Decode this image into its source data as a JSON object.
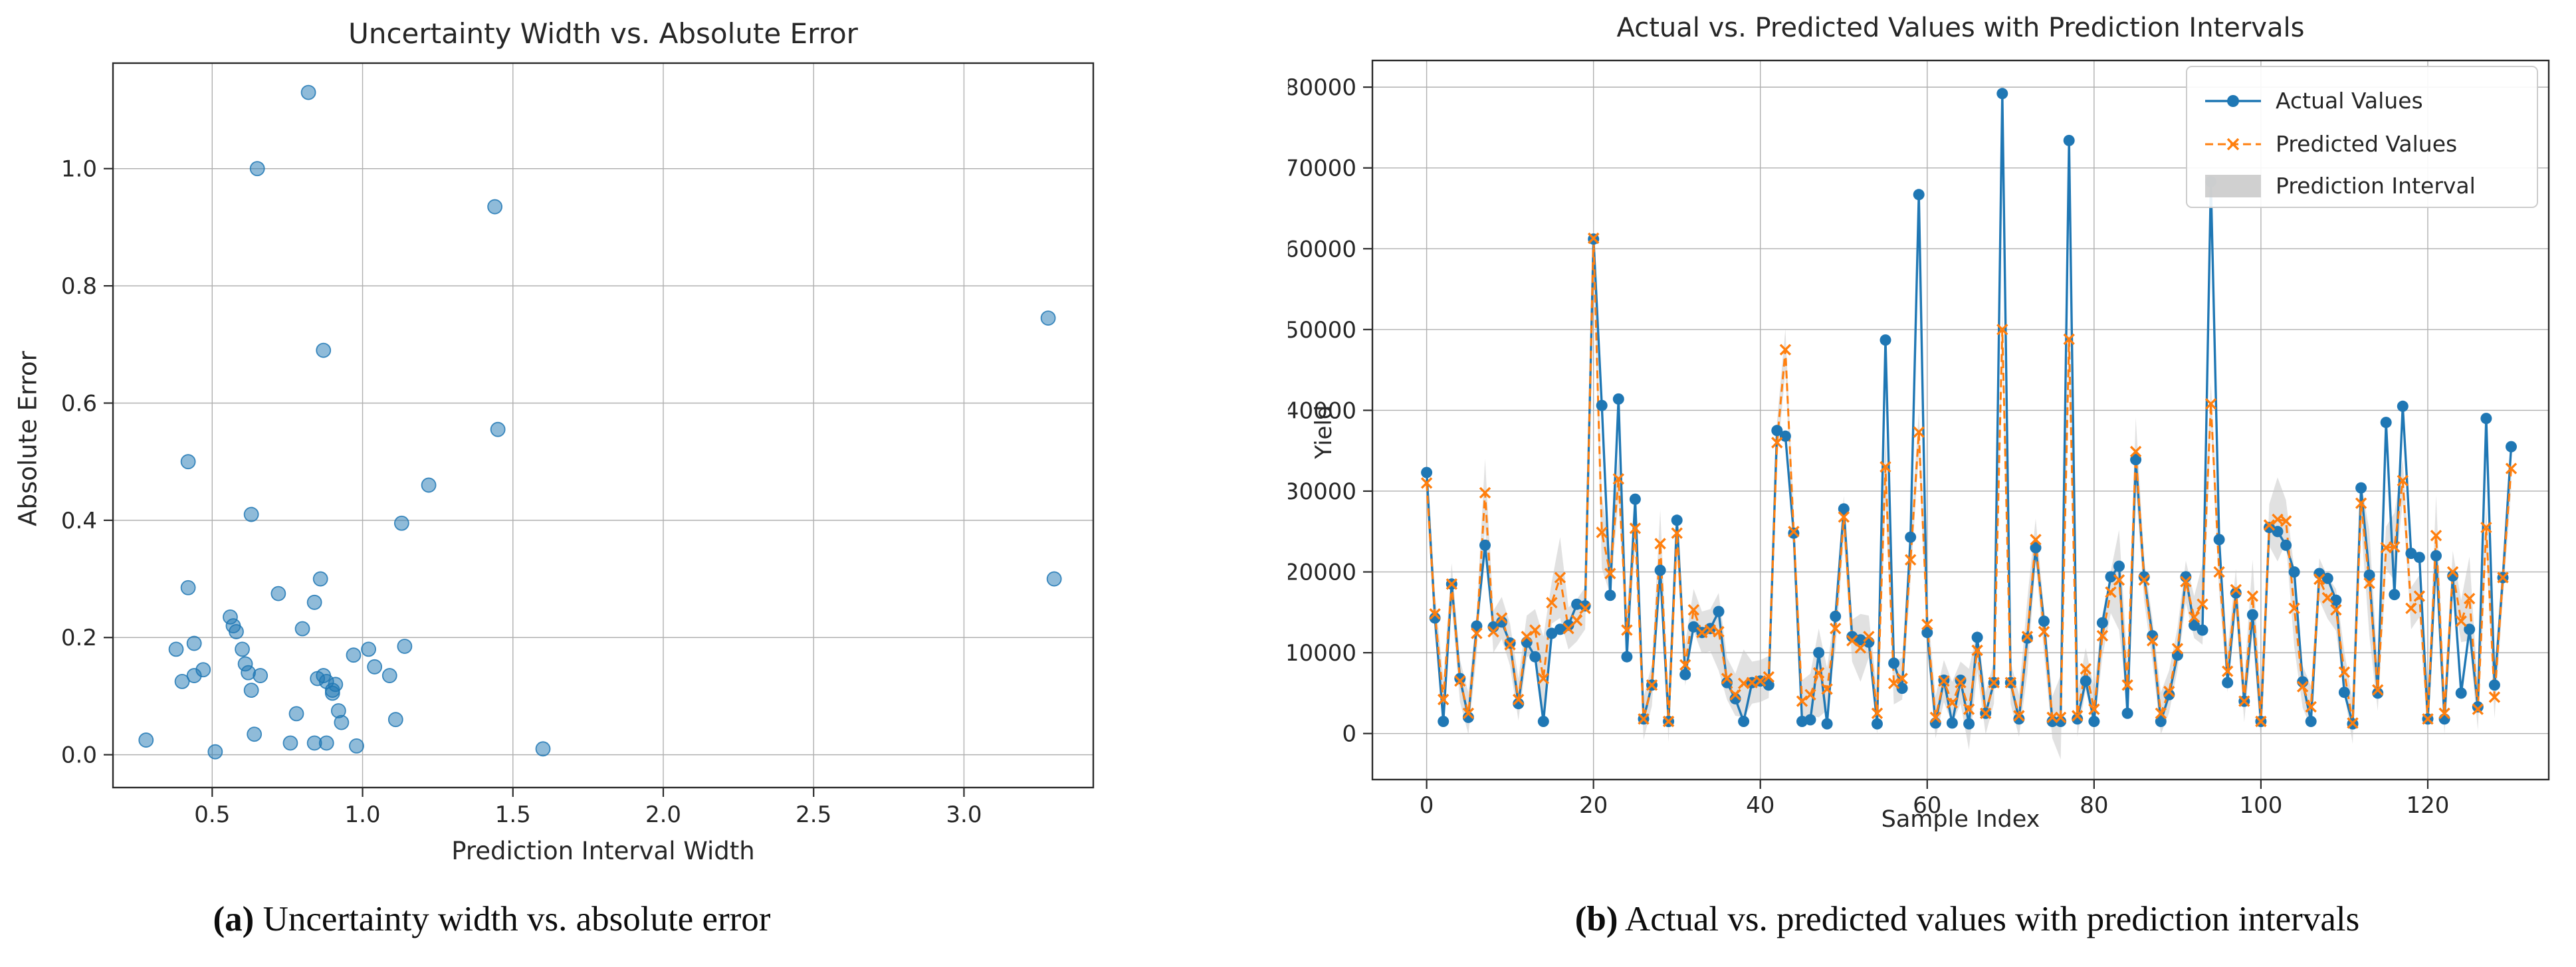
{
  "page": {
    "background": "#ffffff"
  },
  "captions": {
    "a": {
      "label": "(a)",
      "text": " Uncertainty width vs. absolute error"
    },
    "b": {
      "label": "(b)",
      "text": " Actual vs. predicted values with prediction intervals"
    }
  },
  "colors": {
    "actual_blue": "#1f77b4",
    "predicted_orange": "#ff7f0e",
    "interval_gray": "#c4c4c4",
    "grid": "#b0b0b0",
    "spine": "#2a2a2a",
    "text": "#262626"
  },
  "chart_data": [
    {
      "id": "uncertainty_scatter",
      "type": "scatter",
      "title": "Uncertainty Width vs. Absolute Error",
      "xlabel": "Prediction Interval Width",
      "ylabel": "Absolute Error",
      "x_ticks": [
        0.5,
        1.0,
        1.5,
        2.0,
        2.5,
        3.0
      ],
      "y_ticks": [
        0.0,
        0.2,
        0.4,
        0.6,
        0.8,
        1.0
      ],
      "xlim": [
        0.17,
        3.43
      ],
      "ylim": [
        -0.056,
        1.18
      ],
      "grid": true,
      "legend_position": "none",
      "marker": {
        "shape": "circle",
        "color": "#1f77b4",
        "opacity": 0.5,
        "radius": 10.5
      },
      "points": [
        [
          0.28,
          0.025
        ],
        [
          0.38,
          0.18
        ],
        [
          0.4,
          0.125
        ],
        [
          0.42,
          0.5
        ],
        [
          0.42,
          0.285
        ],
        [
          0.44,
          0.19
        ],
        [
          0.44,
          0.135
        ],
        [
          0.47,
          0.145
        ],
        [
          0.51,
          0.005
        ],
        [
          0.56,
          0.235
        ],
        [
          0.57,
          0.22
        ],
        [
          0.58,
          0.21
        ],
        [
          0.6,
          0.18
        ],
        [
          0.61,
          0.155
        ],
        [
          0.62,
          0.14
        ],
        [
          0.63,
          0.41
        ],
        [
          0.63,
          0.11
        ],
        [
          0.64,
          0.035
        ],
        [
          0.65,
          1.0
        ],
        [
          0.66,
          0.135
        ],
        [
          0.72,
          0.275
        ],
        [
          0.76,
          0.02
        ],
        [
          0.78,
          0.07
        ],
        [
          0.8,
          0.215
        ],
        [
          0.82,
          1.13
        ],
        [
          0.84,
          0.26
        ],
        [
          0.84,
          0.02
        ],
        [
          0.85,
          0.13
        ],
        [
          0.86,
          0.3
        ],
        [
          0.87,
          0.69
        ],
        [
          0.87,
          0.135
        ],
        [
          0.88,
          0.125
        ],
        [
          0.88,
          0.02
        ],
        [
          0.9,
          0.11
        ],
        [
          0.9,
          0.105
        ],
        [
          0.91,
          0.12
        ],
        [
          0.92,
          0.075
        ],
        [
          0.93,
          0.055
        ],
        [
          0.97,
          0.17
        ],
        [
          0.98,
          0.015
        ],
        [
          1.02,
          0.18
        ],
        [
          1.04,
          0.15
        ],
        [
          1.09,
          0.135
        ],
        [
          1.11,
          0.06
        ],
        [
          1.13,
          0.395
        ],
        [
          1.14,
          0.185
        ],
        [
          1.22,
          0.46
        ],
        [
          1.44,
          0.935
        ],
        [
          1.45,
          0.555
        ],
        [
          1.6,
          0.01
        ],
        [
          3.28,
          0.745
        ],
        [
          3.3,
          0.3
        ]
      ]
    },
    {
      "id": "actual_vs_predicted",
      "type": "line",
      "title": "Actual vs. Predicted Values with Prediction Intervals",
      "xlabel": "Sample Index",
      "ylabel": "Yield",
      "x_ticks": [
        0,
        20,
        40,
        60,
        80,
        100,
        120
      ],
      "y_ticks": [
        0,
        10000,
        20000,
        30000,
        40000,
        50000,
        60000,
        70000,
        80000
      ],
      "xlim": [
        -6.5,
        134.5
      ],
      "ylim": [
        -5700,
        83300
      ],
      "grid": true,
      "legend_position": "upper right",
      "legend": [
        "Actual Values",
        "Predicted Values",
        "Prediction Interval"
      ],
      "x": "sample index 0..130",
      "series": [
        {
          "name": "Actual Values",
          "color": "#1f77b4",
          "marker": "circle",
          "dash": false,
          "values": [
            32300,
            14300,
            1500,
            18500,
            6800,
            2000,
            13300,
            23300,
            13200,
            13800,
            11200,
            3700,
            11300,
            9500,
            1500,
            12400,
            12900,
            13400,
            16000,
            15800,
            61200,
            40600,
            17100,
            41400,
            9500,
            29000,
            1800,
            6000,
            20200,
            1500,
            26400,
            7300,
            13200,
            12500,
            13000,
            15100,
            6300,
            4300,
            1500,
            6300,
            6500,
            6000,
            37500,
            36800,
            24800,
            1500,
            1700,
            10000,
            1200,
            14500,
            27800,
            12000,
            11600,
            11300,
            1200,
            48700,
            8700,
            5600,
            24300,
            66700,
            12500,
            1300,
            6600,
            1300,
            6600,
            1200,
            11900,
            2500,
            6300,
            79200,
            6300,
            1800,
            11800,
            23000,
            13900,
            1500,
            1500,
            73400,
            1800,
            6500,
            1500,
            13700,
            19400,
            20700,
            2500,
            33900,
            19400,
            12100,
            1500,
            4800,
            9700,
            19400,
            13400,
            12800,
            68300,
            24000,
            6300,
            17400,
            4000,
            14700,
            1500,
            25500,
            25000,
            23300,
            20000,
            6400,
            1500,
            19800,
            19200,
            16500,
            5100,
            1200,
            30400,
            19600,
            5000,
            38500,
            17200,
            40500,
            22300,
            21800,
            1800,
            22000,
            1800,
            19500,
            5000,
            12900,
            3300,
            39000,
            6000,
            19300,
            35500
          ]
        },
        {
          "name": "Predicted Values",
          "color": "#ff7f0e",
          "marker": "x",
          "dash": true,
          "values": [
            31000,
            14800,
            4200,
            18500,
            6500,
            2500,
            12400,
            29800,
            12600,
            14300,
            11000,
            4200,
            12000,
            12800,
            6800,
            16200,
            19300,
            13000,
            14000,
            15500,
            61300,
            24900,
            19800,
            31500,
            12800,
            25400,
            1800,
            6000,
            23500,
            1500,
            24800,
            8500,
            15300,
            12500,
            12800,
            12600,
            6800,
            4800,
            6200,
            6300,
            6500,
            7000,
            36000,
            47500,
            25000,
            4000,
            4800,
            7500,
            5500,
            13000,
            26800,
            11500,
            10600,
            12000,
            2500,
            33000,
            6200,
            6800,
            21500,
            37300,
            13500,
            2000,
            6500,
            3800,
            6300,
            3000,
            10300,
            2500,
            6300,
            50000,
            6300,
            2200,
            12000,
            24000,
            12600,
            2000,
            2000,
            48800,
            2200,
            8000,
            3000,
            12100,
            17500,
            19000,
            6000,
            34900,
            19000,
            11500,
            2500,
            5200,
            10500,
            18800,
            14400,
            16000,
            40800,
            20000,
            7700,
            17800,
            4000,
            17000,
            1500,
            25800,
            26500,
            26300,
            15500,
            5800,
            3300,
            19100,
            16800,
            15300,
            7600,
            1300,
            28500,
            18600,
            5400,
            23000,
            23100,
            31300,
            15500,
            17000,
            1800,
            24500,
            2500,
            20000,
            13900,
            16700,
            3000,
            25500,
            4500,
            19300,
            32800
          ]
        }
      ],
      "interval": {
        "name": "Prediction Interval",
        "color": "#c4c4c4",
        "opacity": 0.5,
        "around_series": "Predicted Values",
        "half_width_default": 2600,
        "half_width_overrides": {
          "7": 4200,
          "14": 5200,
          "16": 5000,
          "21": 4500,
          "28": 4200,
          "35": 4800,
          "38": 4200,
          "47": 5500,
          "52": 4200,
          "55": 4000,
          "65": 5000,
          "72": 4600,
          "76": 5200,
          "83": 6200,
          "85": 4200,
          "93": 5000,
          "99": 4500,
          "102": 5200,
          "104": 4800,
          "113": 6500,
          "116": 4200,
          "121": 5000,
          "125": 5200
        }
      }
    }
  ]
}
